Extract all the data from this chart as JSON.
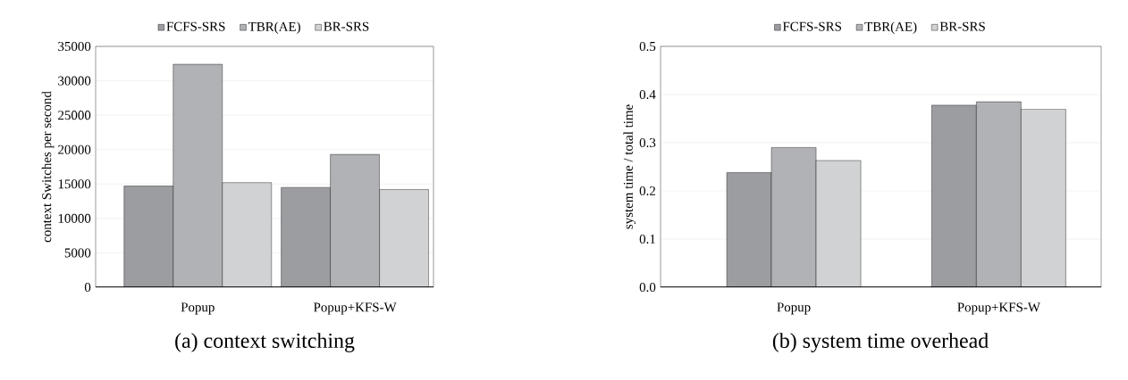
{
  "chart_data": [
    {
      "type": "bar",
      "ylabel": "context Switches per second",
      "categories": [
        "Popup",
        "Popup+KFS-W"
      ],
      "series": [
        {
          "name": "FCFS-SRS",
          "color": "#9c9da1",
          "values": [
            14700,
            14500
          ]
        },
        {
          "name": "TBR(AE)",
          "color": "#b1b2b6",
          "values": [
            32400,
            19300
          ]
        },
        {
          "name": "BR-SRS",
          "color": "#d1d2d4",
          "values": [
            15200,
            14200
          ]
        }
      ],
      "ylim": [
        0,
        35000
      ],
      "yticks": [
        0,
        5000,
        10000,
        15000,
        20000,
        25000,
        30000,
        35000
      ],
      "grid": "y",
      "legend": "top",
      "annotations": [
        "(a) context switching"
      ]
    },
    {
      "type": "bar",
      "ylabel": "system time / total time",
      "categories": [
        "Popup",
        "Popup+KFS-W"
      ],
      "series": [
        {
          "name": "FCFS-SRS",
          "color": "#9c9da1",
          "values": [
            0.238,
            0.378
          ]
        },
        {
          "name": "TBR(AE)",
          "color": "#b1b2b6",
          "values": [
            0.29,
            0.385
          ]
        },
        {
          "name": "BR-SRS",
          "color": "#d1d2d4",
          "values": [
            0.263,
            0.37
          ]
        }
      ],
      "ylim": [
        0,
        0.5
      ],
      "yticks": [
        {
          "value": 0,
          "label": "0.0"
        },
        0.1,
        0.2,
        0.3,
        0.4,
        0.5
      ],
      "grid": "y",
      "legend": "top",
      "annotations": [
        "(b) system time overhead"
      ]
    }
  ]
}
